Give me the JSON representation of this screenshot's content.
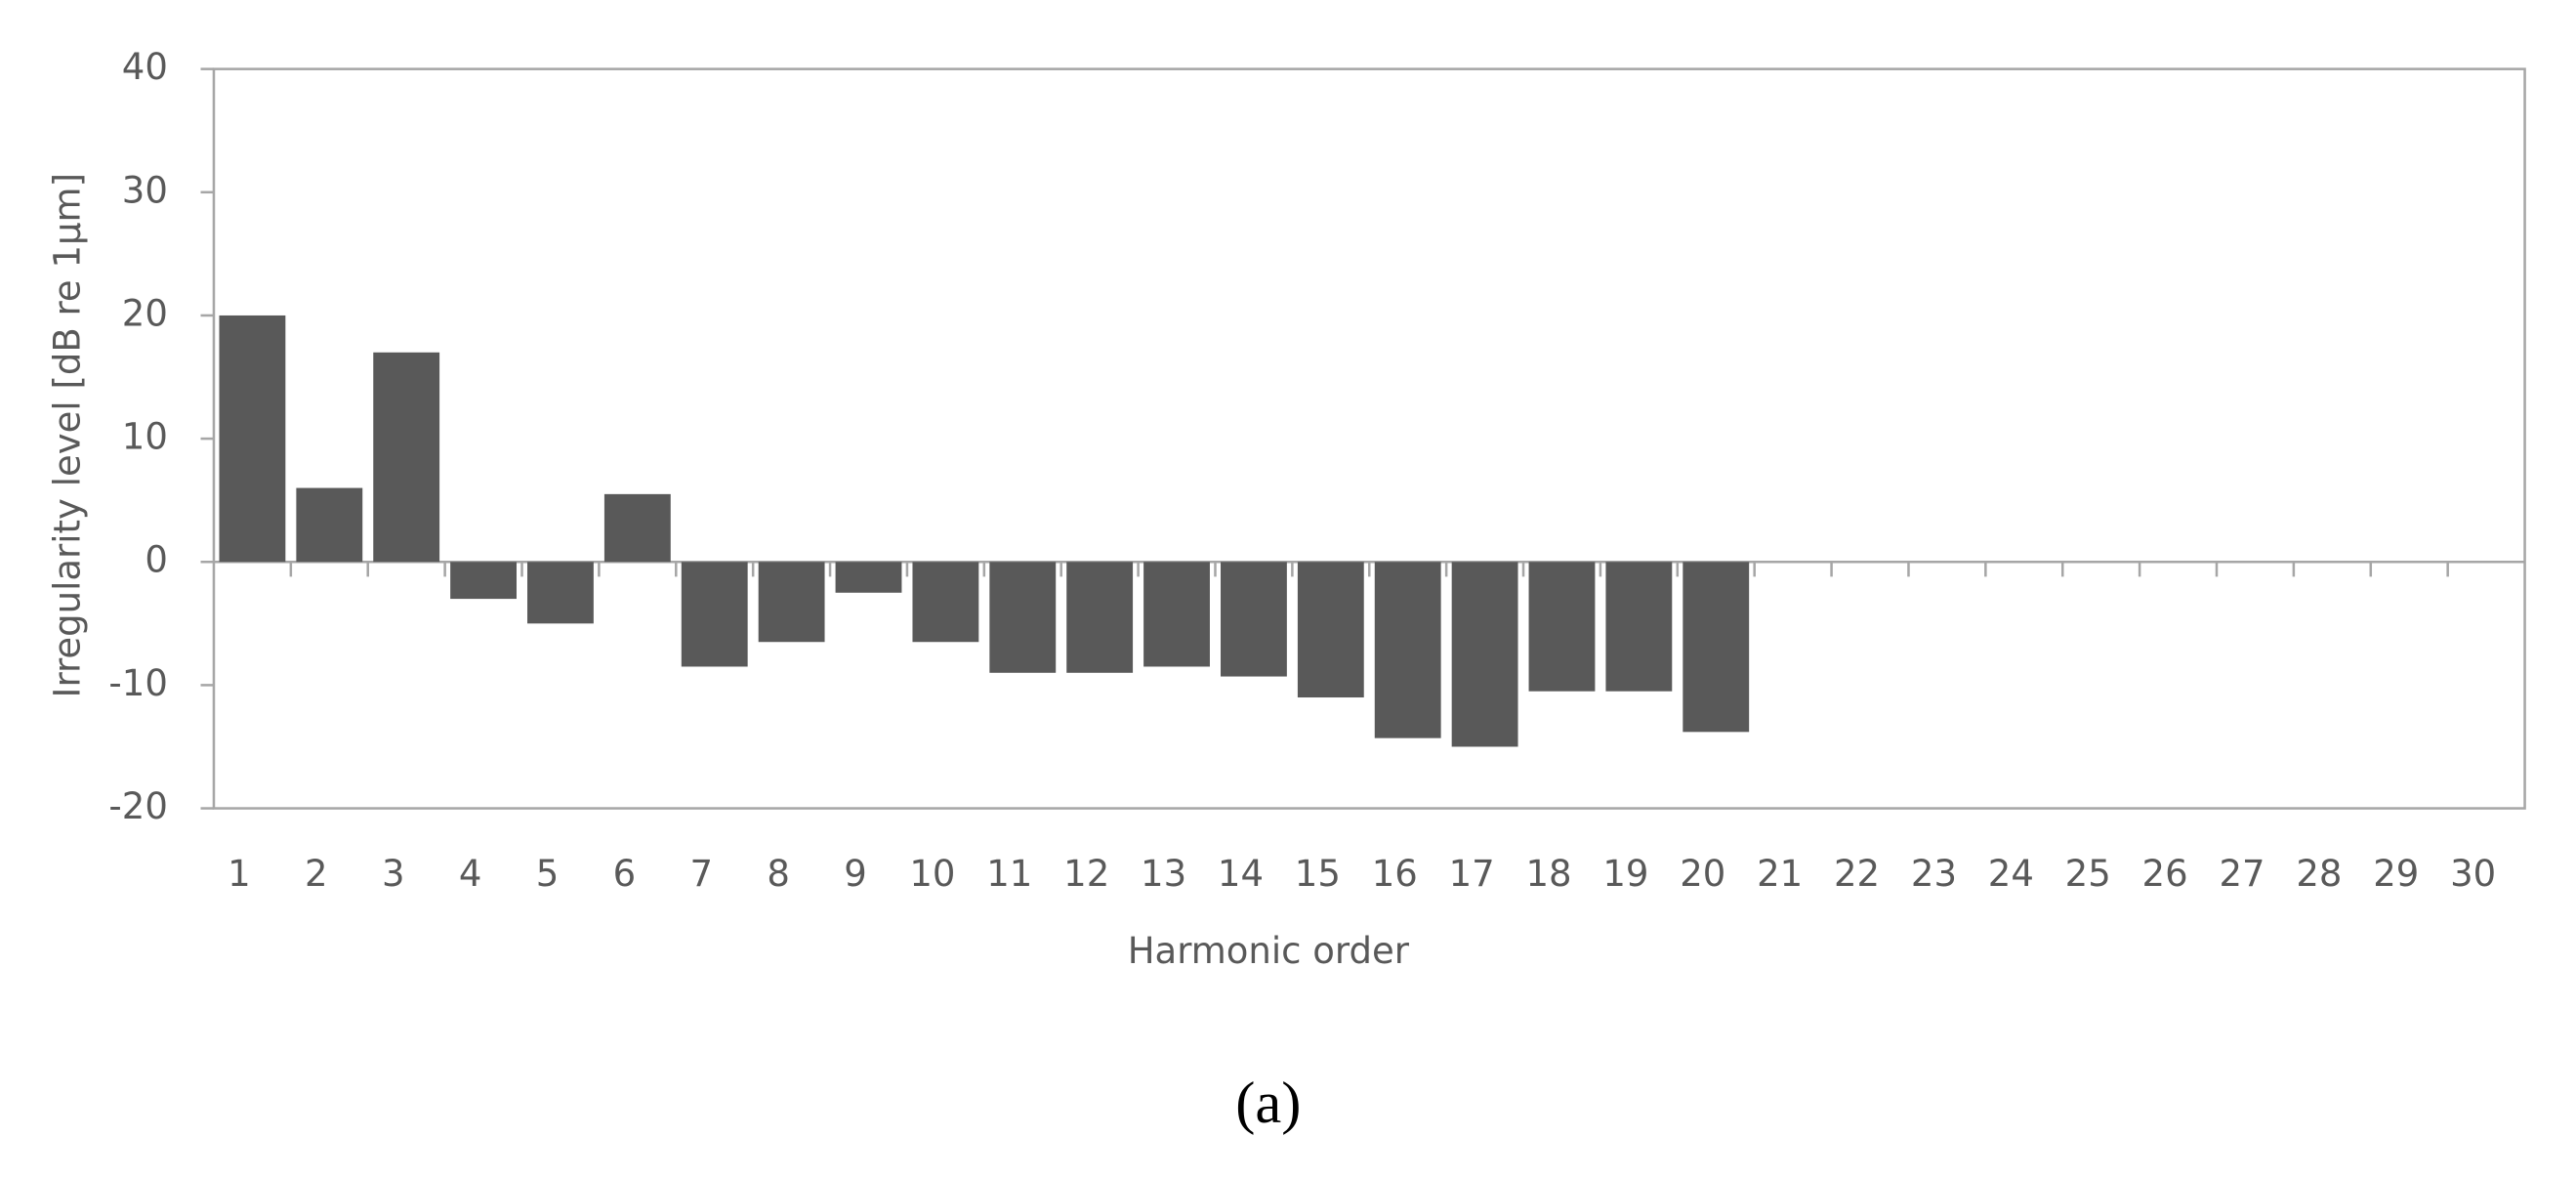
{
  "chart_data": {
    "type": "bar",
    "xlabel": "Harmonic order",
    "ylabel": "Irregularity level [dB re 1µm]",
    "caption": "(a)",
    "categories": [
      "1",
      "2",
      "3",
      "4",
      "5",
      "6",
      "7",
      "8",
      "9",
      "10",
      "11",
      "12",
      "13",
      "14",
      "15",
      "16",
      "17",
      "18",
      "19",
      "20",
      "21",
      "22",
      "23",
      "24",
      "25",
      "26",
      "27",
      "28",
      "29",
      "30"
    ],
    "values": [
      20,
      6,
      17,
      -3,
      -5,
      5.5,
      -8.5,
      -6.5,
      -2.5,
      -6.5,
      -9,
      -9,
      -8.5,
      -9.3,
      -11,
      -14.3,
      -15,
      -10.5,
      -10.5,
      -13.8,
      null,
      null,
      null,
      null,
      null,
      null,
      null,
      null,
      null,
      null
    ],
    "color": "#595959",
    "ylim": [
      -20,
      40
    ],
    "yticks": [
      -20,
      -10,
      0,
      10,
      20,
      30,
      40
    ]
  }
}
